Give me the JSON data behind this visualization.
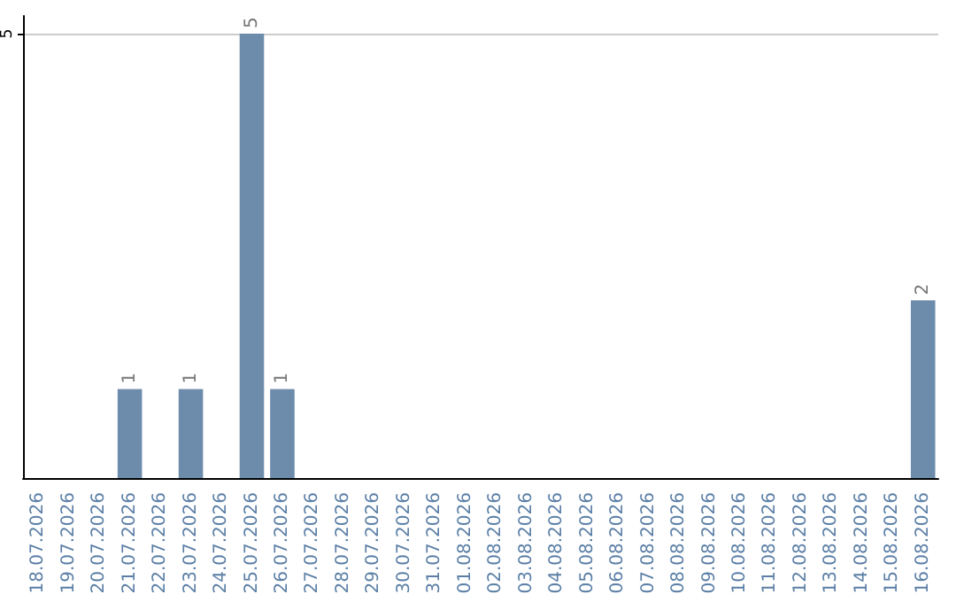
{
  "chart_data": {
    "type": "bar",
    "categories": [
      "18.07.2026",
      "19.07.2026",
      "20.07.2026",
      "21.07.2026",
      "22.07.2026",
      "23.07.2026",
      "24.07.2026",
      "25.07.2026",
      "26.07.2026",
      "27.07.2026",
      "28.07.2026",
      "29.07.2026",
      "30.07.2026",
      "31.07.2026",
      "01.08.2026",
      "02.08.2026",
      "03.08.2026",
      "04.08.2026",
      "05.08.2026",
      "06.08.2026",
      "07.08.2026",
      "08.08.2026",
      "09.08.2026",
      "10.08.2026",
      "11.08.2026",
      "12.08.2026",
      "13.08.2026",
      "14.08.2026",
      "15.08.2026",
      "16.08.2026"
    ],
    "values": [
      0,
      0,
      0,
      1,
      0,
      1,
      0,
      5,
      1,
      0,
      0,
      0,
      0,
      0,
      0,
      0,
      0,
      0,
      0,
      0,
      0,
      0,
      0,
      0,
      0,
      0,
      0,
      0,
      0,
      2
    ],
    "value_labels": [
      null,
      null,
      null,
      "1",
      null,
      "1",
      null,
      "5",
      "1",
      null,
      null,
      null,
      null,
      null,
      null,
      null,
      null,
      null,
      null,
      null,
      null,
      null,
      null,
      null,
      null,
      null,
      null,
      null,
      null,
      "2"
    ],
    "color": "#6d8cab",
    "ylim": [
      0,
      5.2
    ],
    "yticks": [
      5
    ],
    "grid": "y"
  }
}
